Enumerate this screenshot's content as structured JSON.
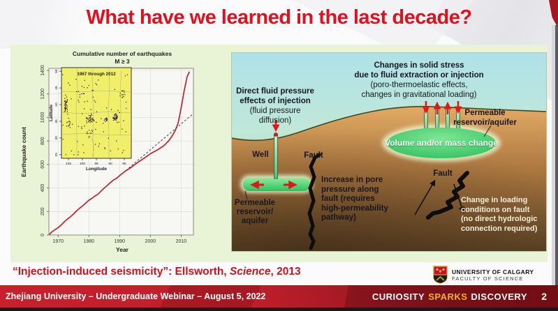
{
  "slide": {
    "title": "What have we learned in the last decade?",
    "citation": {
      "part1": "“Injection-induced seismicity”: Ellsworth, ",
      "journal": "Science",
      "part2": ", 2013"
    }
  },
  "chart_data": {
    "type": "line",
    "title": "Cumulative number of earthquakes",
    "subtitle": "M ≥ 3",
    "xlabel": "Year",
    "ylabel": "Earthquake count",
    "xlim": [
      1967,
      2014
    ],
    "ylim": [
      0,
      1400
    ],
    "x_ticks": [
      1970,
      1980,
      1990,
      2000,
      2010
    ],
    "y_ticks": [
      0,
      200,
      400,
      600,
      800,
      1000,
      1200,
      1400
    ],
    "grid": true,
    "series": [
      {
        "name": "cumulative earthquakes M>=3",
        "style": "solid",
        "color": "#c32031",
        "points": [
          [
            1967,
            0
          ],
          [
            1968,
            28
          ],
          [
            1969,
            45
          ],
          [
            1970,
            62
          ],
          [
            1971,
            85
          ],
          [
            1972,
            112
          ],
          [
            1973,
            135
          ],
          [
            1974,
            155
          ],
          [
            1975,
            178
          ],
          [
            1976,
            205
          ],
          [
            1977,
            228
          ],
          [
            1978,
            248
          ],
          [
            1979,
            272
          ],
          [
            1980,
            296
          ],
          [
            1981,
            312
          ],
          [
            1982,
            332
          ],
          [
            1983,
            348
          ],
          [
            1984,
            375
          ],
          [
            1985,
            400
          ],
          [
            1986,
            422
          ],
          [
            1987,
            446
          ],
          [
            1988,
            468
          ],
          [
            1989,
            482
          ],
          [
            1990,
            506
          ],
          [
            1991,
            526
          ],
          [
            1992,
            546
          ],
          [
            1993,
            562
          ],
          [
            1994,
            580
          ],
          [
            1995,
            601
          ],
          [
            1996,
            619
          ],
          [
            1997,
            637
          ],
          [
            1998,
            654
          ],
          [
            1999,
            672
          ],
          [
            2000,
            691
          ],
          [
            2001,
            706
          ],
          [
            2002,
            719
          ],
          [
            2003,
            736
          ],
          [
            2004,
            753
          ],
          [
            2005,
            776
          ],
          [
            2006,
            803
          ],
          [
            2007,
            840
          ],
          [
            2008,
            885
          ],
          [
            2009,
            950
          ],
          [
            2010,
            1080
          ],
          [
            2011,
            1230
          ],
          [
            2012,
            1352
          ],
          [
            2012.7,
            1390
          ]
        ]
      },
      {
        "name": "linear trend projection",
        "style": "dashed",
        "color": "#444444",
        "points": [
          [
            1992,
            548
          ],
          [
            2013.5,
            1022
          ]
        ]
      }
    ],
    "inset_map": {
      "title": "1967 through 2012",
      "xlabel": "Longitude",
      "ylabel": "Latitude",
      "lon_ticks": [
        105,
        100,
        95,
        90,
        85
      ],
      "lat_ticks": [
        50,
        45,
        40,
        35,
        30,
        25
      ],
      "bg": "#f1ef69",
      "seed": 11,
      "scatter_n": 75,
      "dot_clusters": [
        {
          "fx": 0.06,
          "fy": 0.4,
          "n": 38,
          "sx": 0.035,
          "sy": 0.1
        },
        {
          "fx": 0.1,
          "fy": 0.62,
          "n": 10,
          "sx": 0.04,
          "sy": 0.05
        },
        {
          "fx": 0.42,
          "fy": 0.57,
          "n": 30,
          "sx": 0.07,
          "sy": 0.05
        },
        {
          "fx": 0.63,
          "fy": 0.58,
          "n": 14,
          "sx": 0.035,
          "sy": 0.03
        },
        {
          "fx": 0.77,
          "fy": 0.54,
          "n": 30,
          "sx": 0.045,
          "sy": 0.05
        },
        {
          "fx": 0.4,
          "fy": 0.72,
          "n": 10,
          "sx": 0.05,
          "sy": 0.04
        },
        {
          "fx": 0.88,
          "fy": 0.3,
          "n": 8,
          "sx": 0.06,
          "sy": 0.08
        },
        {
          "fx": 0.25,
          "fy": 0.25,
          "n": 10,
          "sx": 0.1,
          "sy": 0.1
        }
      ]
    }
  },
  "diagram": {
    "label_direct_main": "Direct fluid pressure\neffects of injection",
    "label_direct_sub": "(fluid pressure\ndiffusion)",
    "label_solid_main": "Changes in solid stress\ndue to fluid extraction or injection",
    "label_solid_sub": "(poro-thermoelastic effects,\nchanges in gravitational loading)",
    "label_well": "Well",
    "label_fault_left": "Fault",
    "label_fault_right": "Fault",
    "label_pore": "Increase in pore\npressure along\nfault (requires\nhigh-permeability\npathway)",
    "label_reservoir_left": "Permeable\nreservoir/\naquifer",
    "label_reservoir_right": "Permeable\nreservoir/aquifer",
    "label_volume": "Volume and/or mass change",
    "label_loading": "Change in loading\nconditions on fault\n(no direct hydrologic\nconnection required)"
  },
  "footer": {
    "left_text": "Zhejiang University – Undergraduate Webinar – August 5, 2022",
    "logo_line1": "UNIVERSITY OF CALGARY",
    "logo_line2": "FACULTY OF SCIENCE",
    "tagline_word1": "CURIOSITY",
    "tagline_word2": "SPARKS",
    "tagline_word3": "DISCOVERY",
    "page_number": "2"
  },
  "colors": {
    "title_red": "#e0101e",
    "citation_red": "#cf1120",
    "banner_red": "#c8202c",
    "banner_dark_red": "#8f161f",
    "tagline_gold": "#f2b01e",
    "panel_green": "#e9f3d6",
    "curve_red": "#c32031",
    "inset_yellow": "#f1ef69",
    "sky_blue": "#aee2e8",
    "ground_tan": "#e3aa64",
    "ground_dark": "#5a4124",
    "reservoir_green": "#3ecb63",
    "arrow_red": "#e01818"
  }
}
